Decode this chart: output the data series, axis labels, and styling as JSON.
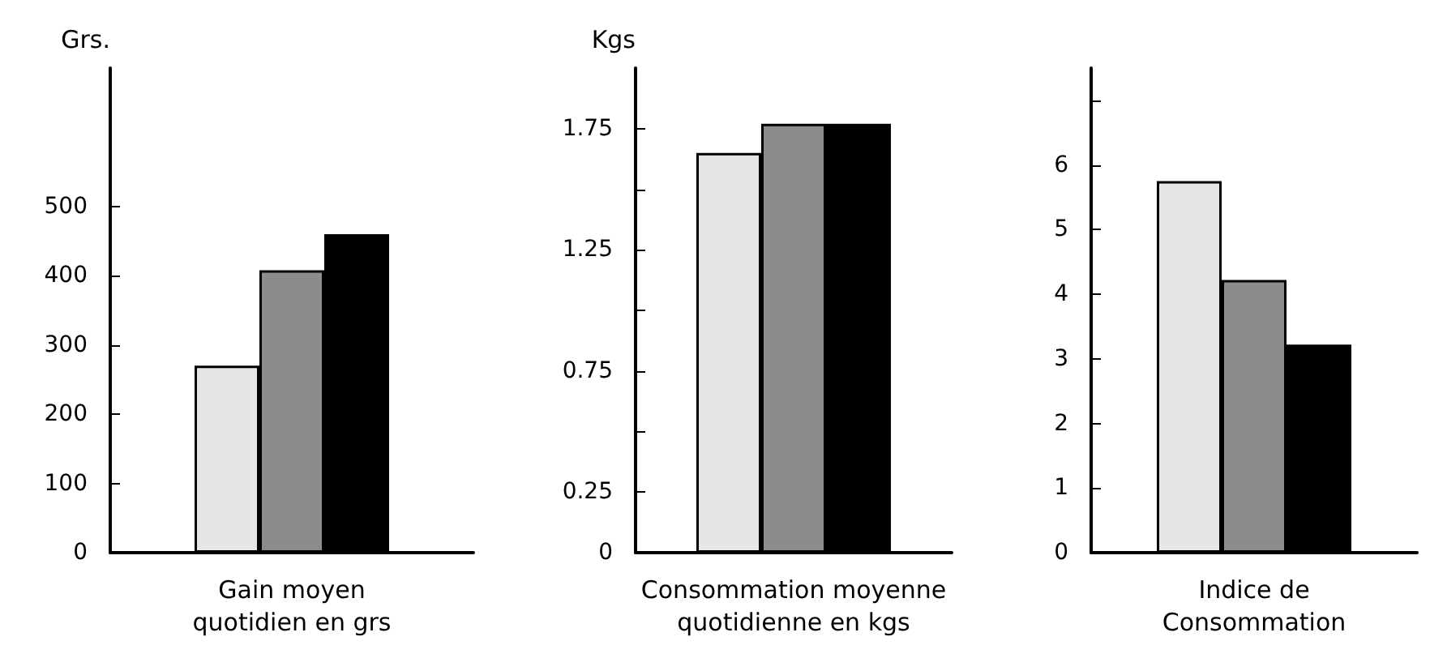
{
  "chart_data": [
    {
      "type": "bar",
      "xlabel": "Gain moyen quotidien en grs",
      "ylabel": "Grs.",
      "categories": [
        null
      ],
      "series": [
        {
          "color": "#e6e6e6",
          "values": [
            270
          ]
        },
        {
          "color": "#8c8c8c",
          "values": [
            408
          ]
        },
        {
          "color": "#000000",
          "values": [
            460
          ]
        }
      ],
      "ylim": [
        0,
        700
      ],
      "yticks": [
        0,
        100,
        200,
        300,
        400,
        500
      ]
    },
    {
      "type": "bar",
      "xlabel": "Consommation moyenne quotidienne en kgs",
      "ylabel": "Kgs",
      "categories": [
        null
      ],
      "series": [
        {
          "color": "#e6e6e6",
          "values": [
            1.65
          ]
        },
        {
          "color": "#8c8c8c",
          "values": [
            1.77
          ]
        },
        {
          "color": "#000000",
          "values": [
            1.77
          ]
        }
      ],
      "ylim": [
        0,
        2
      ],
      "yticks": [
        0,
        {
          "value": 0.25,
          "label": "0.25"
        },
        {
          "value": 0.5,
          "label": null
        },
        {
          "value": 0.75,
          "label": "0.75"
        },
        {
          "value": 1,
          "label": null
        },
        1.25,
        {
          "value": 1.5,
          "label": null
        },
        1.75
      ]
    },
    {
      "type": "bar",
      "xlabel": "Indice de Consommation",
      "categories": [
        null
      ],
      "series": [
        {
          "color": "#e6e6e6",
          "values": [
            5.75
          ]
        },
        {
          "color": "#8c8c8c",
          "values": [
            4.22
          ]
        },
        {
          "color": "#000000",
          "values": [
            3.22
          ]
        }
      ],
      "ylim": [
        0,
        7.5
      ],
      "yticks": [
        0,
        1,
        2,
        3,
        4,
        5,
        6,
        {
          "value": 7,
          "label": null
        }
      ]
    }
  ]
}
